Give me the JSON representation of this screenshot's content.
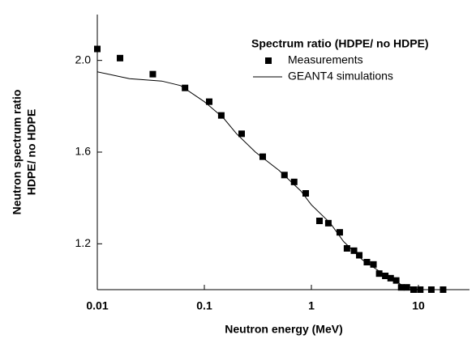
{
  "chart_data": {
    "type": "scatter",
    "xlabel": "Neutron energy (MeV)",
    "ylabel": [
      "Neutron spectrum ratio",
      "HDPE/ no HDPE"
    ],
    "legend_title": "Spectrum ratio (HDPE/ no HDPE)",
    "xscale": "log",
    "xlim": [
      0.01,
      30
    ],
    "ylim": [
      1.0,
      2.2
    ],
    "xticks": [
      0.01,
      0.1,
      1,
      10
    ],
    "yticks": [
      {
        "value": 1.2,
        "label": "1.2"
      },
      {
        "value": 1.6,
        "label": "1.6"
      },
      {
        "value": 2.0,
        "label": "2.0"
      }
    ],
    "series": [
      {
        "name": "Measurements",
        "type": "scatter",
        "color": "#000000",
        "x": [
          0.01,
          0.0163,
          0.033,
          0.066,
          0.111,
          0.144,
          0.223,
          0.351,
          0.56,
          0.69,
          0.885,
          1.19,
          1.44,
          1.84,
          2.15,
          2.5,
          2.8,
          3.3,
          3.8,
          4.3,
          4.9,
          5.5,
          6.2,
          6.9,
          7.8,
          9.0,
          10.4,
          13.2,
          17
        ],
        "values": [
          2.05,
          2.01,
          1.94,
          1.88,
          1.82,
          1.76,
          1.68,
          1.58,
          1.5,
          1.47,
          1.42,
          1.3,
          1.29,
          1.25,
          1.18,
          1.17,
          1.15,
          1.12,
          1.11,
          1.07,
          1.06,
          1.05,
          1.04,
          1.01,
          1.01,
          1.0,
          1.0,
          1.0,
          1.0
        ]
      },
      {
        "name": "GEANT4 simulations",
        "type": "line",
        "color": "#000000",
        "x": [
          0.01,
          0.02,
          0.04,
          0.06,
          0.1,
          0.15,
          0.2,
          0.3,
          0.5,
          0.8,
          1,
          1.5,
          2,
          3,
          5,
          7,
          10,
          20
        ],
        "values": [
          1.95,
          1.92,
          1.91,
          1.89,
          1.82,
          1.75,
          1.68,
          1.6,
          1.52,
          1.43,
          1.37,
          1.29,
          1.21,
          1.13,
          1.06,
          1.02,
          1.0,
          1.0
        ]
      }
    ]
  }
}
